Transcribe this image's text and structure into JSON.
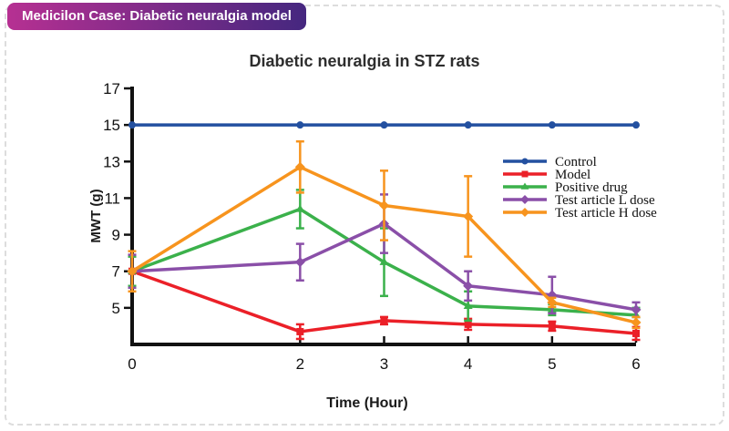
{
  "header": {
    "title": "Medicilon Case: Diabetic neuralgia model",
    "gradient_left": "#b63092",
    "gradient_right": "#45277f",
    "text_color": "#ffffff"
  },
  "card": {
    "border_color": "#dddddd"
  },
  "chart_data": {
    "type": "line",
    "title": "Diabetic neuralgia in STZ rats",
    "xlabel": "Time (Hour)",
    "ylabel": "MWT (g)",
    "x": [
      0,
      2,
      3,
      4,
      5,
      6
    ],
    "xticks": [
      0,
      2,
      3,
      4,
      5,
      6
    ],
    "yticks": [
      5,
      7,
      9,
      11,
      13,
      15,
      17
    ],
    "xlim": [
      0,
      6
    ],
    "ylim": [
      3,
      17
    ],
    "grid": false,
    "legend_position": "right",
    "axis_color": "#111111",
    "series": [
      {
        "name": "Control",
        "color": "#2350a0",
        "marker": "circle",
        "values": [
          15,
          15,
          15,
          15,
          15,
          15
        ],
        "errors": [
          0,
          0,
          0,
          0,
          0,
          0
        ]
      },
      {
        "name": "Model",
        "color": "#eb2028",
        "marker": "square",
        "values": [
          7.0,
          3.7,
          4.3,
          4.1,
          4.0,
          3.6
        ],
        "errors": [
          0.9,
          0.4,
          0.2,
          0.3,
          0.25,
          0.35
        ]
      },
      {
        "name": "Positive drug",
        "color": "#3bb14b",
        "marker": "triangle",
        "values": [
          7.0,
          10.4,
          7.5,
          5.1,
          4.9,
          4.6
        ],
        "errors": [
          0.8,
          1.05,
          1.85,
          0.8,
          0.3,
          0.4
        ]
      },
      {
        "name": "Test article L dose",
        "color": "#8a4fa8",
        "marker": "diamond",
        "values": [
          7.0,
          7.5,
          9.6,
          6.2,
          5.7,
          4.9
        ],
        "errors": [
          0.9,
          1.0,
          1.6,
          0.8,
          1.0,
          0.4
        ]
      },
      {
        "name": "Test article H dose",
        "color": "#f7941e",
        "marker": "diamond",
        "values": [
          7.0,
          12.7,
          10.6,
          10.0,
          5.3,
          4.2
        ],
        "errors": [
          1.1,
          1.4,
          1.9,
          2.2,
          0.25,
          0.3
        ]
      }
    ]
  }
}
